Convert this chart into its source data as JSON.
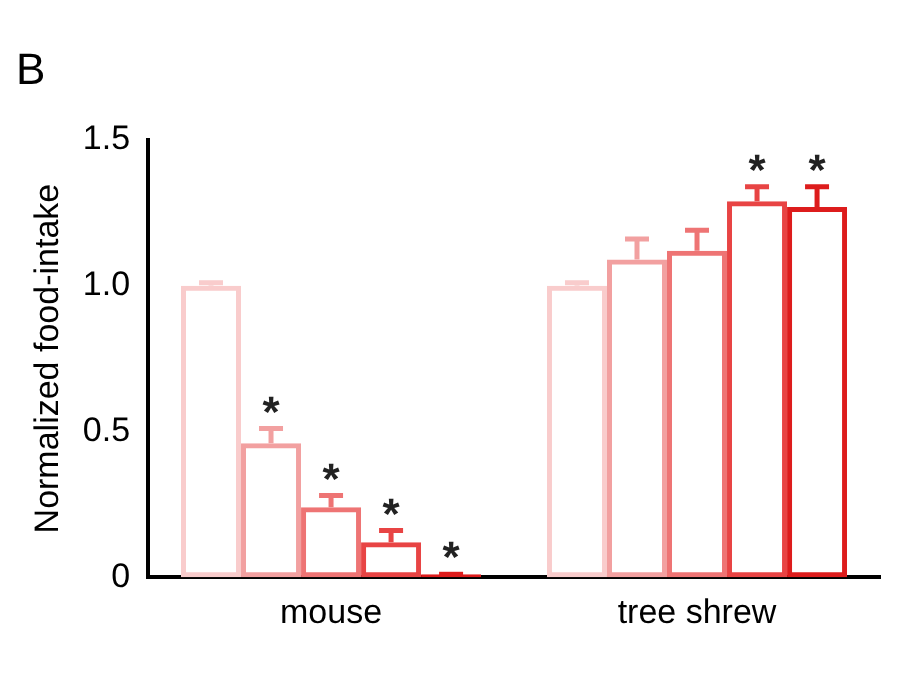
{
  "chart_data": {
    "type": "bar",
    "title": "B",
    "ylabel": "Normalized food-intake",
    "categories": [
      "mouse",
      "tree shrew"
    ],
    "series": [
      {
        "color": "#f9cccc",
        "values": [
          1.0,
          1.0
        ],
        "errors": [
          [
            1.0,
            1.01
          ],
          [
            1.0,
            1.01
          ]
        ]
      },
      {
        "color": "#f2a0a0",
        "values": [
          0.46,
          1.09
        ],
        "errors": [
          [
            0.46,
            0.51
          ],
          [
            1.09,
            1.16
          ]
        ],
        "value_labels": [
          "*",
          null
        ]
      },
      {
        "color": "#ee7474",
        "values": [
          0.24,
          1.12
        ],
        "errors": [
          [
            0.24,
            0.28
          ],
          [
            1.12,
            1.19
          ]
        ],
        "value_labels": [
          "*",
          null
        ]
      },
      {
        "color": "#e84444",
        "values": [
          0.12,
          1.29
        ],
        "errors": [
          [
            0.12,
            0.16
          ],
          [
            1.29,
            1.34
          ]
        ],
        "value_labels": [
          "*",
          "*"
        ]
      },
      {
        "color": "#dd1c1c",
        "values": [
          0.01,
          1.27
        ],
        "errors": [
          [
            0.01,
            0.01
          ],
          [
            1.27,
            1.34
          ]
        ],
        "value_labels": [
          "*",
          "*"
        ]
      }
    ],
    "ylim": [
      0,
      1.5
    ],
    "yticks": [
      0,
      0.5,
      {
        "value": 1,
        "label": "1.0"
      },
      1.5
    ],
    "grid": false,
    "legend": false
  }
}
